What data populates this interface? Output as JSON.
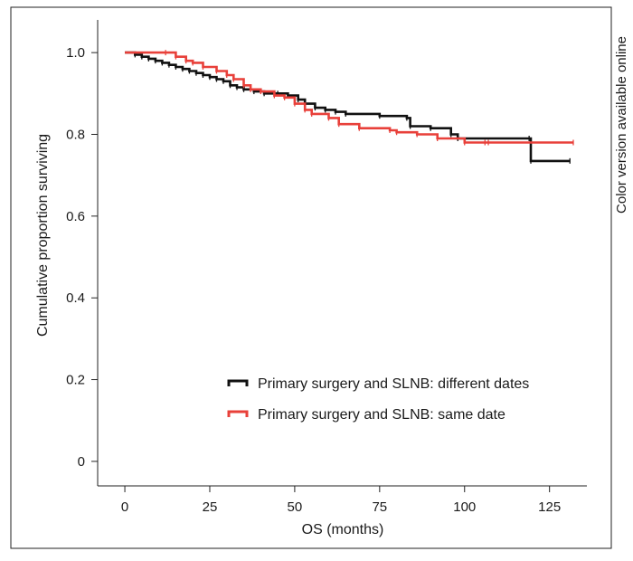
{
  "side_note": "Color version available online",
  "chart_data": {
    "type": "line",
    "subtype": "kaplan-meier-step",
    "title": "",
    "xlabel": "OS (months)",
    "ylabel": "Cumulative proportion surviving",
    "xlim": [
      -8,
      136
    ],
    "ylim": [
      -0.06,
      1.08
    ],
    "xticks": [
      0,
      25,
      50,
      75,
      100,
      125
    ],
    "yticks": [
      0,
      0.2,
      0.4,
      0.6,
      0.8,
      1.0
    ],
    "ytick_labels": [
      "0",
      "0.2",
      "0.4",
      "0.6",
      "0.8",
      "1.0"
    ],
    "grid": false,
    "legend_position": "bottom-right",
    "series": [
      {
        "name": "Primary surgery and SLNB: different dates",
        "color": "#111111",
        "points": [
          [
            0,
            1.0
          ],
          [
            3,
            0.995
          ],
          [
            5,
            0.99
          ],
          [
            7,
            0.985
          ],
          [
            9,
            0.98
          ],
          [
            11,
            0.975
          ],
          [
            13,
            0.97
          ],
          [
            15,
            0.965
          ],
          [
            17,
            0.96
          ],
          [
            19,
            0.955
          ],
          [
            21,
            0.95
          ],
          [
            23,
            0.945
          ],
          [
            25,
            0.94
          ],
          [
            27,
            0.935
          ],
          [
            29,
            0.93
          ],
          [
            31,
            0.92
          ],
          [
            33,
            0.915
          ],
          [
            35,
            0.91
          ],
          [
            38,
            0.905
          ],
          [
            41,
            0.9
          ],
          [
            45,
            0.9
          ],
          [
            48,
            0.895
          ],
          [
            51,
            0.885
          ],
          [
            53,
            0.875
          ],
          [
            56,
            0.865
          ],
          [
            59,
            0.86
          ],
          [
            62,
            0.855
          ],
          [
            65,
            0.85
          ],
          [
            75,
            0.845
          ],
          [
            83,
            0.84
          ],
          [
            84,
            0.82
          ],
          [
            90,
            0.815
          ],
          [
            96,
            0.8
          ],
          [
            98,
            0.79
          ],
          [
            119,
            0.79
          ],
          [
            119.5,
            0.735
          ],
          [
            131,
            0.735
          ]
        ]
      },
      {
        "name": "Primary surgery and SLNB: same date",
        "color": "#e8403a",
        "points": [
          [
            0,
            1.0
          ],
          [
            12,
            1.0
          ],
          [
            15,
            0.99
          ],
          [
            18,
            0.98
          ],
          [
            20,
            0.975
          ],
          [
            23,
            0.965
          ],
          [
            27,
            0.955
          ],
          [
            30,
            0.945
          ],
          [
            32,
            0.935
          ],
          [
            35,
            0.92
          ],
          [
            37,
            0.91
          ],
          [
            40,
            0.905
          ],
          [
            44,
            0.895
          ],
          [
            47,
            0.89
          ],
          [
            50,
            0.875
          ],
          [
            53,
            0.86
          ],
          [
            55,
            0.85
          ],
          [
            60,
            0.84
          ],
          [
            63,
            0.825
          ],
          [
            69,
            0.815
          ],
          [
            78,
            0.81
          ],
          [
            80,
            0.805
          ],
          [
            86,
            0.8
          ],
          [
            92,
            0.79
          ],
          [
            100,
            0.78
          ],
          [
            106,
            0.78
          ],
          [
            107,
            0.78
          ],
          [
            132,
            0.78
          ]
        ]
      }
    ]
  }
}
